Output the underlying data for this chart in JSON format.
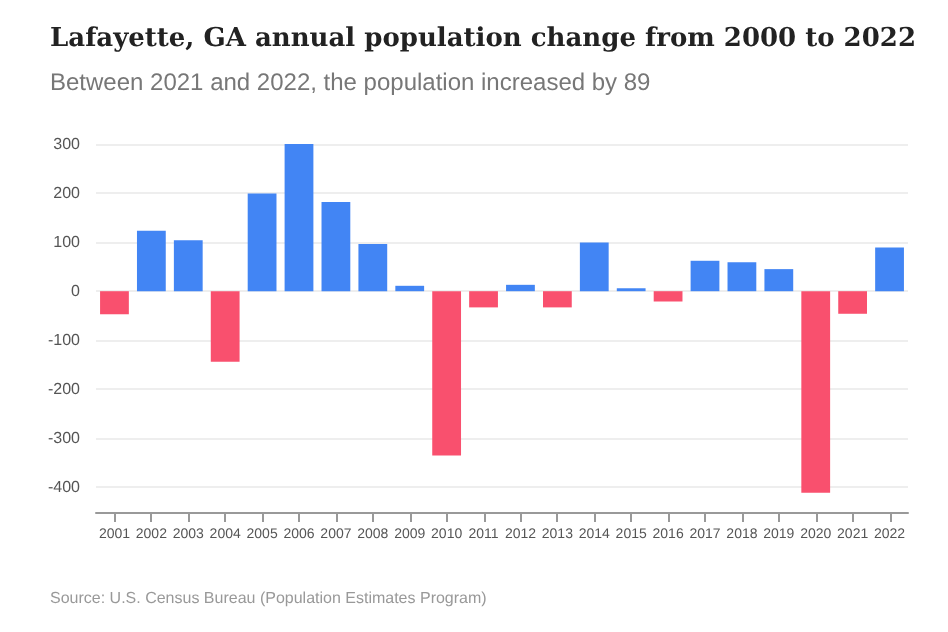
{
  "chart_data": {
    "type": "bar",
    "title": "Lafayette, GA annual population change from 2000 to 2022",
    "subtitle": "Between 2021 and 2022, the population increased by 89",
    "categories": [
      "2001",
      "2002",
      "2003",
      "2004",
      "2005",
      "2006",
      "2007",
      "2008",
      "2009",
      "2010",
      "2011",
      "2012",
      "2013",
      "2014",
      "2015",
      "2016",
      "2017",
      "2018",
      "2019",
      "2020",
      "2021",
      "2022"
    ],
    "values": [
      -47,
      123,
      104,
      -144,
      199,
      300,
      182,
      96,
      11,
      -335,
      -33,
      13,
      -33,
      99,
      6,
      -21,
      62,
      59,
      45,
      -411,
      -46,
      89
    ],
    "colors": [
      "#f9506e",
      "#4285f4",
      "#4285f4",
      "#f9506e",
      "#4285f4",
      "#4285f4",
      "#4285f4",
      "#4285f4",
      "#4285f4",
      "#f9506e",
      "#f9506e",
      "#4285f4",
      "#f9506e",
      "#4285f4",
      "#4285f4",
      "#f9506e",
      "#4285f4",
      "#4285f4",
      "#4285f4",
      "#f9506e",
      "#f9506e",
      "#4285f4"
    ],
    "ylim": [
      -450,
      300
    ],
    "yticks": [
      -400,
      -300,
      -200,
      -100,
      0,
      100,
      200,
      300
    ],
    "grid": "y",
    "annotations": [
      "Source: U.S. Census Bureau (Population Estimates Program)"
    ]
  }
}
